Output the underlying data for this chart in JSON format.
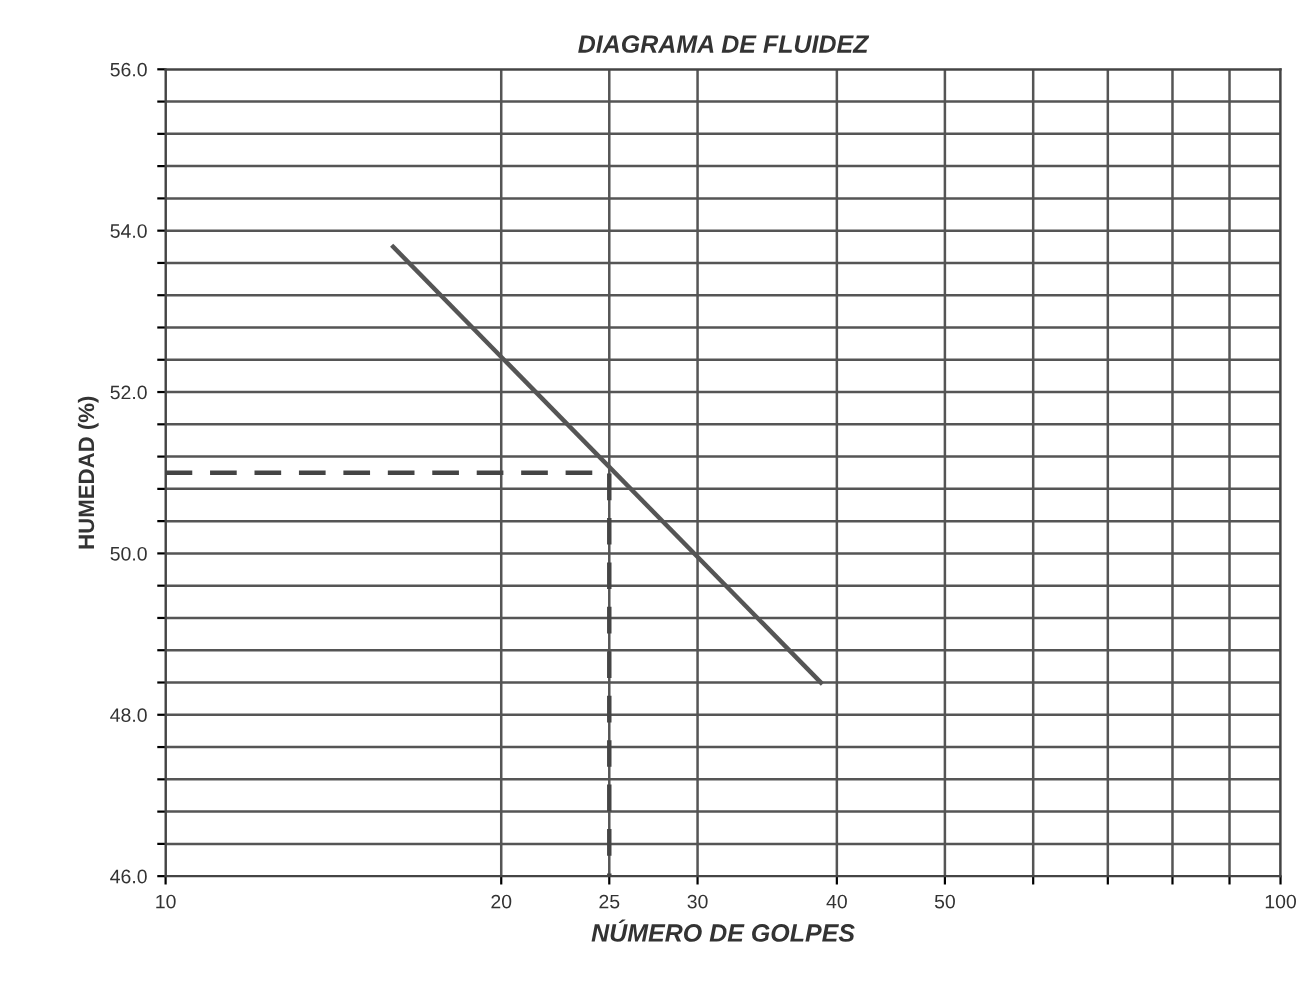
{
  "chart_data": {
    "type": "line",
    "title": "DIAGRAMA DE FLUIDEZ",
    "xlabel": "NÚMERO DE GOLPES",
    "ylabel": "HUMEDAD (%)",
    "log": "x",
    "grid": true,
    "marker": "none",
    "xlim": [
      10,
      100
    ],
    "xticks": [
      10,
      20,
      25,
      30,
      40,
      50,
      {
        "value": 60,
        "label": null
      },
      {
        "value": 70,
        "label": null
      },
      {
        "value": 80,
        "label": null
      },
      {
        "value": 90,
        "label": null
      },
      100
    ],
    "ylim": [
      46,
      56
    ],
    "yticks": [
      {
        "value": 46,
        "label": "46.0"
      },
      {
        "value": 46.4,
        "label": null
      },
      {
        "value": 46.8,
        "label": null
      },
      {
        "value": 47.2,
        "label": null
      },
      {
        "value": 47.6,
        "label": null
      },
      {
        "value": 48,
        "label": "48.0"
      },
      {
        "value": 48.4,
        "label": null
      },
      {
        "value": 48.8,
        "label": null
      },
      {
        "value": 49.2,
        "label": null
      },
      {
        "value": 49.6,
        "label": null
      },
      {
        "value": 50,
        "label": "50.0"
      },
      {
        "value": 50.4,
        "label": null
      },
      {
        "value": 50.8,
        "label": null
      },
      {
        "value": 51.2,
        "label": null
      },
      {
        "value": 51.6,
        "label": null
      },
      {
        "value": 52,
        "label": "52.0"
      },
      {
        "value": 52.4,
        "label": null
      },
      {
        "value": 52.8,
        "label": null
      },
      {
        "value": 53.2,
        "label": null
      },
      {
        "value": 53.6,
        "label": null
      },
      {
        "value": 54,
        "label": "54.0"
      },
      {
        "value": 54.4,
        "label": null
      },
      {
        "value": 54.8,
        "label": null
      },
      {
        "value": 55.2,
        "label": null
      },
      {
        "value": 55.6,
        "label": null
      },
      {
        "value": 56,
        "label": "56.0"
      }
    ],
    "series": [
      {
        "color": "#555555",
        "line_style": "solid",
        "x": [
          16,
          38.7
        ],
        "values": [
          53.8,
          48.4
        ]
      },
      {
        "color": "#444444",
        "line_style": "dashed",
        "x": [
          10,
          25,
          25
        ],
        "values": [
          51.0,
          51.0,
          46.0
        ]
      }
    ]
  }
}
